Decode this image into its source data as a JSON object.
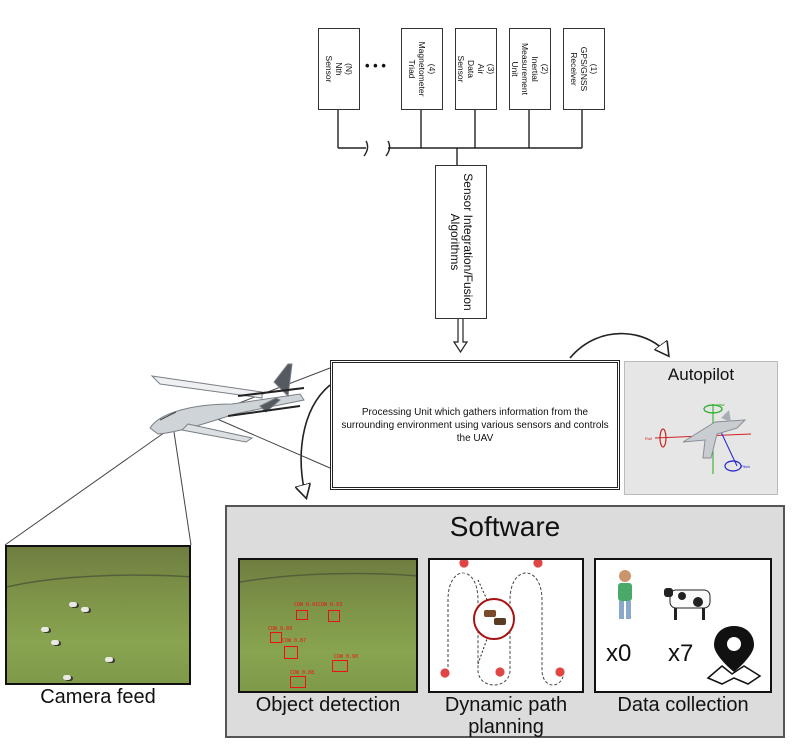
{
  "sensors": [
    {
      "label": "(N)\nNth\nSensor"
    },
    {
      "label": "(4)\nMagnetometer\nTriad"
    },
    {
      "label": "(3)\nAir\nData\nSensor"
    },
    {
      "label": "(2)\nInertial\nMeasurement\nUnit"
    },
    {
      "label": "(1)\nGPS/GNSS\nReceiver"
    }
  ],
  "ellipsis": "• • •",
  "fusion": {
    "label": "Sensor Integration/Fusion Algorithms"
  },
  "processing": {
    "label": "Processing Unit which gathers information from the surrounding environment using various sensors and controls the UAV"
  },
  "autopilot": {
    "title": "Autopilot",
    "axis_labels": [
      "Yaw",
      "Roll",
      "Pitch"
    ]
  },
  "software": {
    "title": "Software",
    "panels": [
      {
        "label": "Object detection"
      },
      {
        "label": "Dynamic path planning"
      },
      {
        "label": "Data collection"
      }
    ],
    "counts": [
      "x0",
      "x7"
    ]
  },
  "detections": [
    "COW 0.91",
    "COW 0.93",
    "COW 0.89",
    "COW 0.87",
    "COW 0.90",
    "COW 0.88"
  ],
  "camera": {
    "label": "Camera feed"
  }
}
